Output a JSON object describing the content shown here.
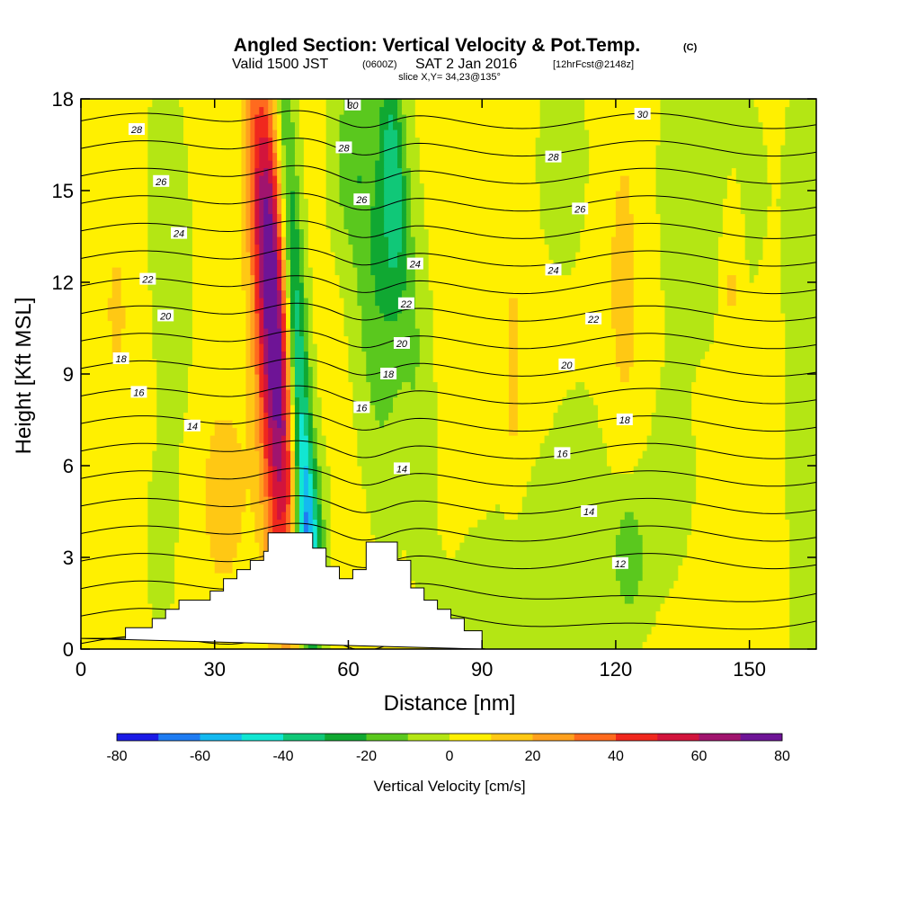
{
  "header": {
    "title": "Angled Section: Vertical Velocity & Pot.Temp.",
    "title_units": "(C)",
    "subtitle_a": "Valid 1500 JST",
    "subtitle_b": "(0600Z)",
    "subtitle_c": "SAT 2 Jan 2016",
    "subtitle_d": "[12hrFcst@2148z]",
    "subtitle_line3": "slice X,Y= 34,23@135°"
  },
  "chart_data": {
    "type": "heatmap",
    "xlabel": "Distance [nm]",
    "ylabel": "Height [Kft MSL]",
    "xlim": [
      0,
      165
    ],
    "ylim": [
      0,
      18
    ],
    "x_ticks": [
      0,
      30,
      60,
      90,
      120,
      150
    ],
    "y_ticks": [
      0,
      3,
      6,
      9,
      12,
      15,
      18
    ],
    "colorbar": {
      "title": "Vertical Velocity [cm/s]",
      "levels": [
        -80,
        -70,
        -60,
        -50,
        -40,
        -30,
        -20,
        -10,
        0,
        10,
        20,
        30,
        40,
        50,
        60,
        70,
        80
      ],
      "tick_labels": [
        "-80",
        "-60",
        "-40",
        "-20",
        "0",
        "20",
        "40",
        "60",
        "80"
      ],
      "colors": [
        "#1a1ae6",
        "#1f7cf2",
        "#14b9f0",
        "#12e6d2",
        "#10c878",
        "#10a832",
        "#5ac81e",
        "#b4e614",
        "#fff000",
        "#ffc814",
        "#ffa01e",
        "#ff6a1e",
        "#f0281e",
        "#d2143c",
        "#a0146e",
        "#6e1496"
      ]
    },
    "terrain": [
      [
        0,
        0.35
      ],
      [
        10,
        0.35
      ],
      [
        10,
        0.7
      ],
      [
        16,
        0.7
      ],
      [
        16,
        1
      ],
      [
        19,
        1
      ],
      [
        19,
        1.3
      ],
      [
        22,
        1.3
      ],
      [
        22,
        1.6
      ],
      [
        29,
        1.6
      ],
      [
        29,
        1.9
      ],
      [
        32,
        1.9
      ],
      [
        32,
        2.3
      ],
      [
        35,
        2.3
      ],
      [
        35,
        2.6
      ],
      [
        38,
        2.6
      ],
      [
        38,
        2.9
      ],
      [
        41,
        2.9
      ],
      [
        41,
        3.2
      ],
      [
        42,
        3.2
      ],
      [
        42,
        3.8
      ],
      [
        52,
        3.8
      ],
      [
        52,
        3.3
      ],
      [
        55,
        3.3
      ],
      [
        55,
        2.7
      ],
      [
        58,
        2.7
      ],
      [
        58,
        2.3
      ],
      [
        61,
        2.3
      ],
      [
        61,
        2.6
      ],
      [
        64,
        2.6
      ],
      [
        64,
        3.5
      ],
      [
        71,
        3.5
      ],
      [
        71,
        2.9
      ],
      [
        74,
        2.9
      ],
      [
        74,
        2.0
      ],
      [
        77,
        2.0
      ],
      [
        77,
        1.6
      ],
      [
        80,
        1.6
      ],
      [
        80,
        1.3
      ],
      [
        83,
        1.3
      ],
      [
        83,
        1.0
      ],
      [
        86,
        1.0
      ],
      [
        86,
        0.6
      ],
      [
        90,
        0.6
      ],
      [
        90,
        0
      ]
    ],
    "velocity_features": [
      {
        "x": 44,
        "y": 8,
        "sx": 3.0,
        "sy": 5.5,
        "tilt": -0.35,
        "w": 60
      },
      {
        "x": 42,
        "y": 14,
        "sx": 2.5,
        "sy": 4.0,
        "tilt": -0.4,
        "w": 40
      },
      {
        "x": 49,
        "y": 8,
        "sx": 1.8,
        "sy": 7.0,
        "tilt": -0.35,
        "w": -55
      },
      {
        "x": 51,
        "y": 3.5,
        "sx": 2.5,
        "sy": 2.0,
        "tilt": 0,
        "w": -30
      },
      {
        "x": 66,
        "y": 12,
        "sx": 3.5,
        "sy": 4.5,
        "tilt": -0.3,
        "w": -22
      },
      {
        "x": 70,
        "y": 15.5,
        "sx": 2.0,
        "sy": 3.0,
        "tilt": -0.2,
        "w": -35
      },
      {
        "x": 60,
        "y": 16,
        "sx": 3.0,
        "sy": 2.0,
        "tilt": 0,
        "w": -15
      },
      {
        "x": 75,
        "y": 10,
        "sx": 2.5,
        "sy": 4.5,
        "tilt": -0.3,
        "w": -12
      },
      {
        "x": 20,
        "y": 13,
        "sx": 3.0,
        "sy": 4.0,
        "tilt": -0.2,
        "w": -12
      },
      {
        "x": 18,
        "y": 3.5,
        "sx": 2.0,
        "sy": 1.8,
        "tilt": 0,
        "w": -12
      },
      {
        "x": 8,
        "y": 11,
        "sx": 3.0,
        "sy": 3.0,
        "tilt": -0.1,
        "w": 8
      },
      {
        "x": 32,
        "y": 5,
        "sx": 4.0,
        "sy": 2.5,
        "tilt": 0,
        "w": 12
      },
      {
        "x": 108,
        "y": 16,
        "sx": 4.0,
        "sy": 2.5,
        "tilt": 0,
        "w": -8
      },
      {
        "x": 123,
        "y": 3.0,
        "sx": 2.5,
        "sy": 1.5,
        "tilt": 0,
        "w": -18
      },
      {
        "x": 122,
        "y": 11,
        "sx": 3.5,
        "sy": 6.0,
        "tilt": 0,
        "w": 12
      },
      {
        "x": 120,
        "y": 5,
        "sx": 12,
        "sy": 3.0,
        "tilt": 0,
        "w": -8
      },
      {
        "x": 140,
        "y": 15,
        "sx": 12,
        "sy": 4.0,
        "tilt": 0,
        "w": -6
      },
      {
        "x": 100,
        "y": 1.5,
        "sx": 12,
        "sy": 2.0,
        "tilt": 0,
        "w": -10
      },
      {
        "x": 97,
        "y": 9,
        "sx": 1.5,
        "sy": 2.5,
        "tilt": 0,
        "w": 12
      },
      {
        "x": 146,
        "y": 12,
        "sx": 1.5,
        "sy": 2.0,
        "tilt": 0,
        "w": 12
      },
      {
        "x": 163,
        "y": 8,
        "sx": 3.0,
        "sy": 8.0,
        "tilt": 0,
        "w": -10
      }
    ],
    "theta_contours": {
      "levels": [
        10,
        11,
        12,
        13,
        14,
        15,
        16,
        17,
        18,
        19,
        20,
        21,
        22,
        23,
        24,
        25,
        26,
        27,
        28,
        29,
        30,
        31
      ],
      "labels": [
        {
          "text": "28",
          "x": 12.5,
          "y": 17.0
        },
        {
          "text": "26",
          "x": 18,
          "y": 15.3
        },
        {
          "text": "24",
          "x": 22,
          "y": 13.6
        },
        {
          "text": "22",
          "x": 15,
          "y": 12.1
        },
        {
          "text": "20",
          "x": 19,
          "y": 10.9
        },
        {
          "text": "18",
          "x": 9,
          "y": 9.5
        },
        {
          "text": "16",
          "x": 13,
          "y": 8.4
        },
        {
          "text": "14",
          "x": 25,
          "y": 7.3
        },
        {
          "text": "30",
          "x": 61,
          "y": 17.8
        },
        {
          "text": "28",
          "x": 59,
          "y": 16.4
        },
        {
          "text": "26",
          "x": 63,
          "y": 14.7
        },
        {
          "text": "24",
          "x": 75,
          "y": 12.6
        },
        {
          "text": "22",
          "x": 73,
          "y": 11.3
        },
        {
          "text": "20",
          "x": 72,
          "y": 10.0
        },
        {
          "text": "18",
          "x": 69,
          "y": 9.0
        },
        {
          "text": "16",
          "x": 63,
          "y": 7.9
        },
        {
          "text": "14",
          "x": 72,
          "y": 5.9
        },
        {
          "text": "30",
          "x": 126,
          "y": 17.5
        },
        {
          "text": "28",
          "x": 106,
          "y": 16.1
        },
        {
          "text": "26",
          "x": 112,
          "y": 14.4
        },
        {
          "text": "24",
          "x": 106,
          "y": 12.4
        },
        {
          "text": "22",
          "x": 115,
          "y": 10.8
        },
        {
          "text": "20",
          "x": 109,
          "y": 9.3
        },
        {
          "text": "18",
          "x": 122,
          "y": 7.5
        },
        {
          "text": "16",
          "x": 108,
          "y": 6.4
        },
        {
          "text": "14",
          "x": 114,
          "y": 4.5
        },
        {
          "text": "12",
          "x": 121,
          "y": 2.8
        }
      ]
    }
  }
}
